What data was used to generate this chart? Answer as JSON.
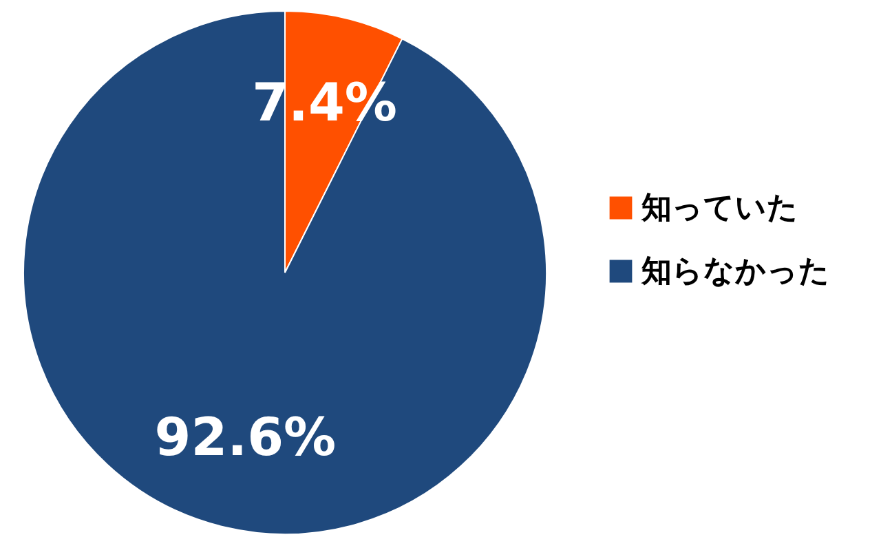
{
  "chart_data": {
    "type": "pie",
    "categories": [
      "知っていた",
      "知らなかった"
    ],
    "values": [
      7.4,
      92.6
    ],
    "colors": [
      "#ff5000",
      "#1f497d"
    ],
    "value_labels": [
      "7.4%",
      "92.6%"
    ],
    "legend": "right"
  }
}
